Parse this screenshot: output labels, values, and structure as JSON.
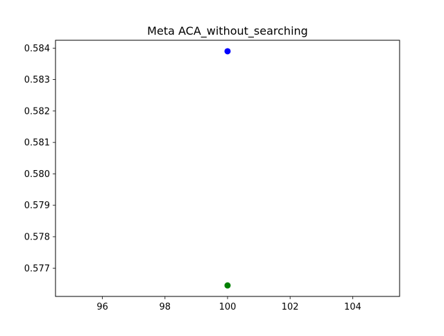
{
  "chart_data": {
    "type": "scatter",
    "title": "Meta ACA_without_searching",
    "xlabel": "",
    "ylabel": "",
    "xlim": [
      94.5,
      105.5
    ],
    "ylim": [
      0.5761,
      0.58425
    ],
    "xticks": [
      96,
      98,
      100,
      102,
      104
    ],
    "xtick_labels": [
      "96",
      "98",
      "100",
      "102",
      "104"
    ],
    "yticks": [
      0.577,
      0.578,
      0.579,
      0.58,
      0.581,
      0.582,
      0.583,
      0.584
    ],
    "ytick_labels": [
      "0.577",
      "0.578",
      "0.579",
      "0.580",
      "0.581",
      "0.582",
      "0.583",
      "0.584"
    ],
    "grid": false,
    "series": [
      {
        "color": "#0000ff",
        "points": [
          {
            "x": 100,
            "y": 0.5839
          }
        ]
      },
      {
        "color": "#008000",
        "points": [
          {
            "x": 100,
            "y": 0.57645
          }
        ]
      }
    ]
  }
}
